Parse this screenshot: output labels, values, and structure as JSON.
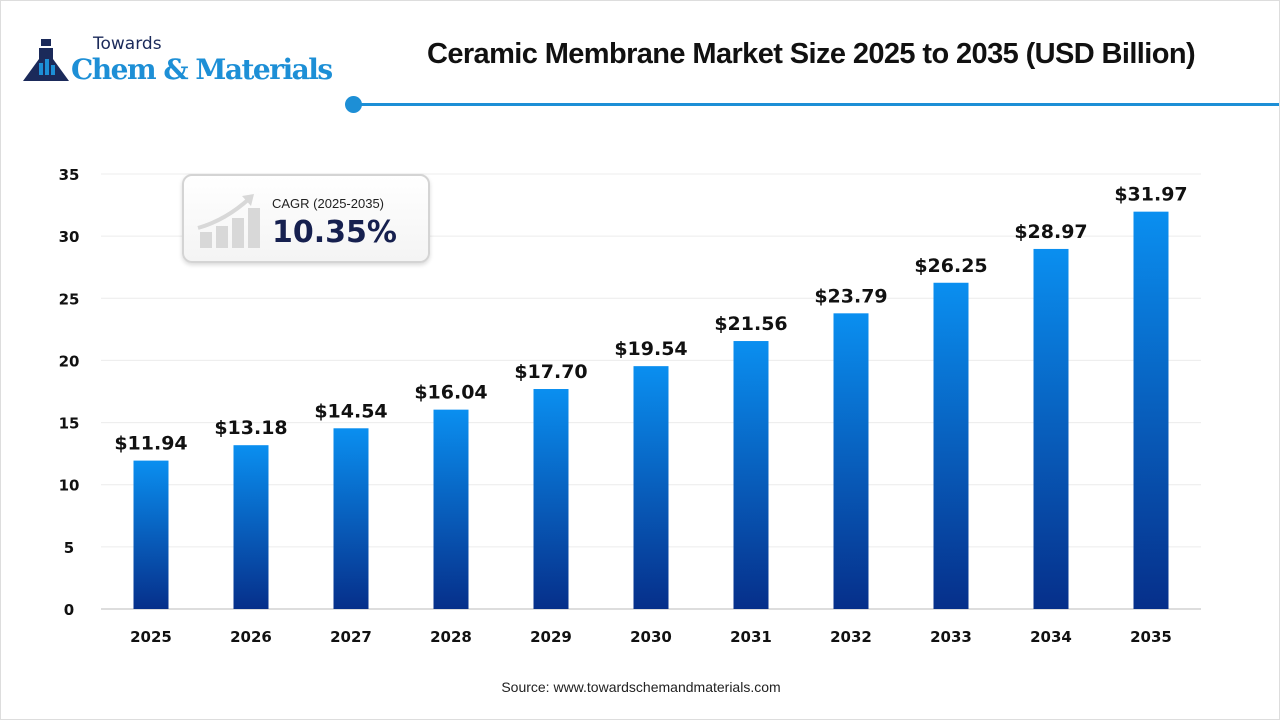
{
  "logo": {
    "line1": "Towards",
    "line2": "Chem & Materials"
  },
  "header": {
    "title": "Ceramic Membrane Market Size 2025 to 2035 (USD Billion)"
  },
  "cagr": {
    "label": "CAGR (2025-2035)",
    "value": "10.35%",
    "icon": "growth-chart-icon"
  },
  "source": "Source: www.towardschemandmaterials.com",
  "colors": {
    "accent": "#1d8fd6",
    "bar_top": "#0a8ff0",
    "bar_bottom": "#062f8a"
  },
  "chart_data": {
    "type": "bar",
    "title": "Ceramic Membrane Market Size 2025 to 2035 (USD Billion)",
    "categories": [
      "2025",
      "2026",
      "2027",
      "2028",
      "2029",
      "2030",
      "2031",
      "2032",
      "2033",
      "2034",
      "2035"
    ],
    "values": [
      11.94,
      13.18,
      14.54,
      16.04,
      17.7,
      19.54,
      21.56,
      23.79,
      26.25,
      28.97,
      31.97
    ],
    "data_labels": [
      "$11.94",
      "$13.18",
      "$14.54",
      "$16.04",
      "$17.70",
      "$19.54",
      "$21.56",
      "$23.79",
      "$26.25",
      "$28.97",
      "$31.97"
    ],
    "yticks": [
      "0",
      "5",
      "10",
      "15",
      "20",
      "25",
      "30",
      "35"
    ],
    "ylim": [
      0,
      35
    ],
    "grid": true,
    "xlabel": "",
    "ylabel": ""
  }
}
